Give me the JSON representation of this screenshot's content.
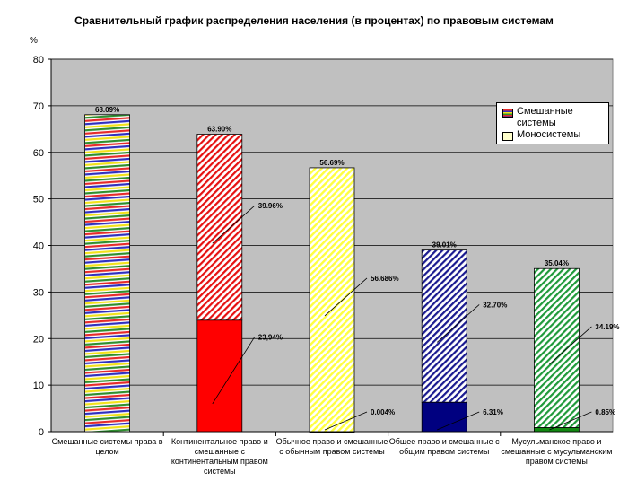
{
  "chart_data": {
    "type": "bar",
    "title": "Сравнительный график распределения населения (в процентах) по правовым системам",
    "ylabel": "%",
    "ylim": [
      0,
      80
    ],
    "yticks": [
      0,
      10,
      20,
      30,
      40,
      50,
      60,
      70,
      80
    ],
    "grid": "horizontal",
    "legend_position": "top-right",
    "categories": [
      "Смешанные системы права в целом",
      "Континентальное право и смешанные с континентальным правом системы",
      "Обычное право и смешанные с обычным правом системы",
      "Общее право и смешанные с общим правом системы",
      "Мусульманское право и смешанные с мусульманским правом системы"
    ],
    "totals": [
      68.09,
      63.9,
      56.69,
      39.01,
      35.04
    ],
    "total_labels": [
      "68.09%",
      "63.90%",
      "56.69%",
      "39.01%",
      "35.04%"
    ],
    "series": [
      {
        "name": "Моносистемы",
        "values": [
          null,
          23.94,
          0.004,
          6.31,
          0.85
        ],
        "labels": [
          "",
          "23,94%",
          "0.004%",
          "6.31%",
          "0.85%"
        ]
      },
      {
        "name": "Смешанные системы",
        "values": [
          68.09,
          39.96,
          56.686,
          32.7,
          34.19
        ],
        "labels": [
          "",
          "39.96%",
          "56.686%",
          "32.70%",
          "34.19%"
        ]
      }
    ],
    "colors": [
      "#e8a820",
      "#ff0000",
      "#ffff66",
      "#000080",
      "#118811"
    ]
  }
}
